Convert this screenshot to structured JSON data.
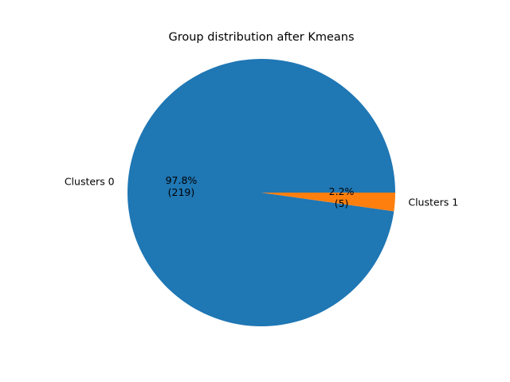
{
  "chart_data": {
    "type": "pie",
    "title": "Group distribution after Kmeans",
    "slices": [
      {
        "label": "Clusters 0",
        "value": 219,
        "percent_label": "97.8%",
        "count_label": "(219)",
        "color": "#1f77b4"
      },
      {
        "label": "Clusters 1",
        "value": 5,
        "percent_label": "2.2%",
        "count_label": "(5)",
        "color": "#ff7f0e"
      }
    ]
  }
}
